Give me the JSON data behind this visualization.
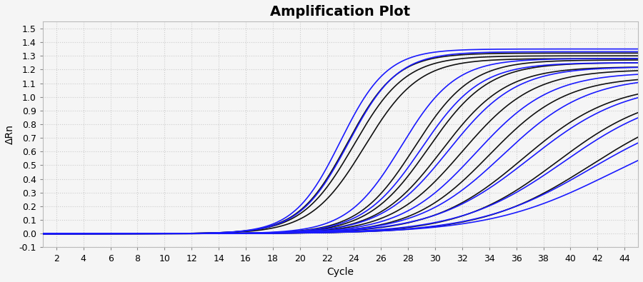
{
  "title": "Amplification Plot",
  "xlabel": "Cycle",
  "ylabel": "ΔRn",
  "xlim": [
    1,
    45
  ],
  "ylim": [
    -0.1,
    1.55
  ],
  "xticks": [
    2,
    4,
    6,
    8,
    10,
    12,
    14,
    16,
    18,
    20,
    22,
    24,
    26,
    28,
    30,
    32,
    34,
    36,
    38,
    40,
    42,
    44
  ],
  "yticks": [
    -0.1,
    0.0,
    0.1,
    0.2,
    0.3,
    0.4,
    0.5,
    0.6,
    0.7,
    0.8,
    0.9,
    1.0,
    1.1,
    1.2,
    1.3,
    1.4,
    1.5
  ],
  "background_color": "#f5f5f5",
  "grid_color": "#cccccc",
  "title_fontsize": 14,
  "axis_label_fontsize": 10,
  "tick_fontsize": 9,
  "black_curves": [
    {
      "midpoint": 23.5,
      "steepness": 0.55,
      "max_val": 1.32
    },
    {
      "midpoint": 24.0,
      "steepness": 0.52,
      "max_val": 1.3
    },
    {
      "midpoint": 24.8,
      "steepness": 0.5,
      "max_val": 1.28
    },
    {
      "midpoint": 28.5,
      "steepness": 0.48,
      "max_val": 1.27
    },
    {
      "midpoint": 29.5,
      "steepness": 0.45,
      "max_val": 1.25
    },
    {
      "midpoint": 30.5,
      "steepness": 0.42,
      "max_val": 1.22
    },
    {
      "midpoint": 32.0,
      "steepness": 0.38,
      "max_val": 1.2
    },
    {
      "midpoint": 34.0,
      "steepness": 0.35,
      "max_val": 1.15
    },
    {
      "midpoint": 36.5,
      "steepness": 0.3,
      "max_val": 1.1
    },
    {
      "midpoint": 39.0,
      "steepness": 0.28,
      "max_val": 1.05
    },
    {
      "midpoint": 41.5,
      "steepness": 0.25,
      "max_val": 1.0
    }
  ],
  "blue_curves": [
    {
      "midpoint": 23.0,
      "steepness": 0.58,
      "max_val": 1.35
    },
    {
      "midpoint": 23.6,
      "steepness": 0.55,
      "max_val": 1.33
    },
    {
      "midpoint": 27.5,
      "steepness": 0.5,
      "max_val": 1.28
    },
    {
      "midpoint": 29.0,
      "steepness": 0.46,
      "max_val": 1.25
    },
    {
      "midpoint": 31.0,
      "steepness": 0.4,
      "max_val": 1.22
    },
    {
      "midpoint": 33.0,
      "steepness": 0.36,
      "max_val": 1.18
    },
    {
      "midpoint": 35.0,
      "steepness": 0.32,
      "max_val": 1.15
    },
    {
      "midpoint": 37.0,
      "steepness": 0.28,
      "max_val": 1.1
    },
    {
      "midpoint": 39.5,
      "steepness": 0.26,
      "max_val": 1.05
    },
    {
      "midpoint": 41.5,
      "steepness": 0.24,
      "max_val": 0.95
    },
    {
      "midpoint": 43.0,
      "steepness": 0.22,
      "max_val": 0.88
    }
  ],
  "line_width": 1.2,
  "black_color": "#111111",
  "blue_color": "#1a1aff"
}
